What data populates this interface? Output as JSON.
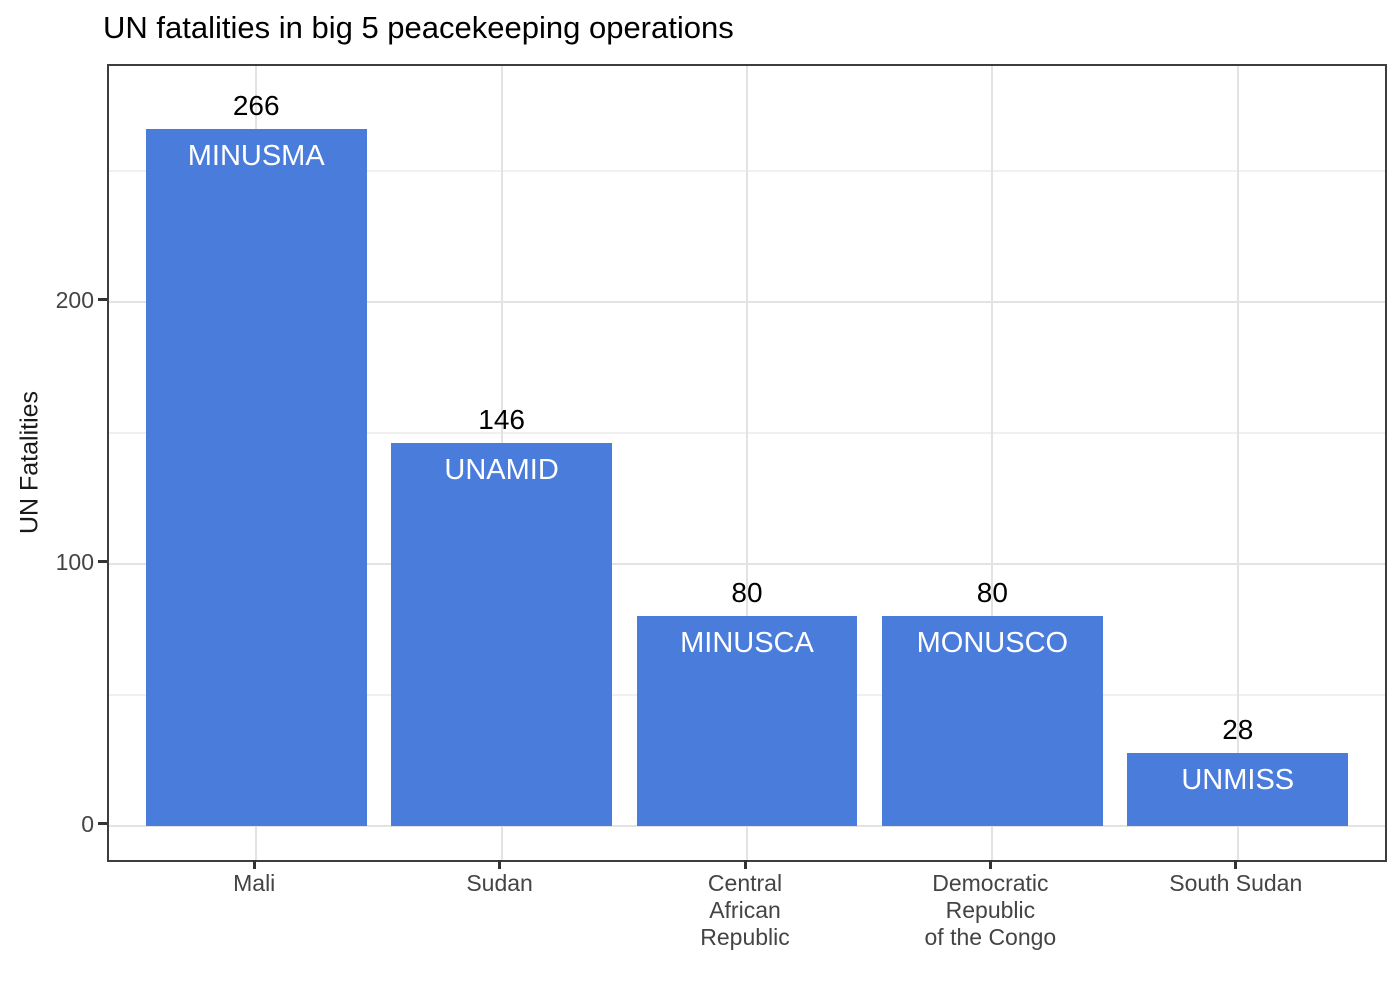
{
  "chart_data": {
    "type": "bar",
    "title": "UN fatalities in big 5 peacekeeping operations",
    "xlabel": "",
    "ylabel": "UN Fatalities",
    "categories": [
      "Mali",
      "Sudan",
      "Central\nAfrican\nRepublic",
      "Democratic\nRepublic\nof the Congo",
      "South Sudan"
    ],
    "values": [
      266,
      146,
      80,
      80,
      28
    ],
    "bar_mission_labels": [
      "MINUSMA",
      "UNAMID",
      "MINUSCA",
      "MONUSCO",
      "UNMISS"
    ],
    "value_labels": [
      "266",
      "146",
      "80",
      "80",
      "28"
    ],
    "yticks_major": [
      0,
      100,
      200
    ],
    "yticks_minor": [
      50,
      150,
      250
    ],
    "ylim": [
      -13,
      290
    ],
    "grid": "major-and-minor",
    "legend_position": "none",
    "colors": {
      "bar_fill": "#4A7CDB",
      "bar_label_text": "#FFFFFF",
      "value_label_text": "#000000",
      "grid_major": "#E3E3E3",
      "grid_minor": "#F0F0F0",
      "panel_border": "#3D3D3D",
      "axis_text": "#444444",
      "title_text": "#000000",
      "background": "#FFFFFF"
    }
  }
}
